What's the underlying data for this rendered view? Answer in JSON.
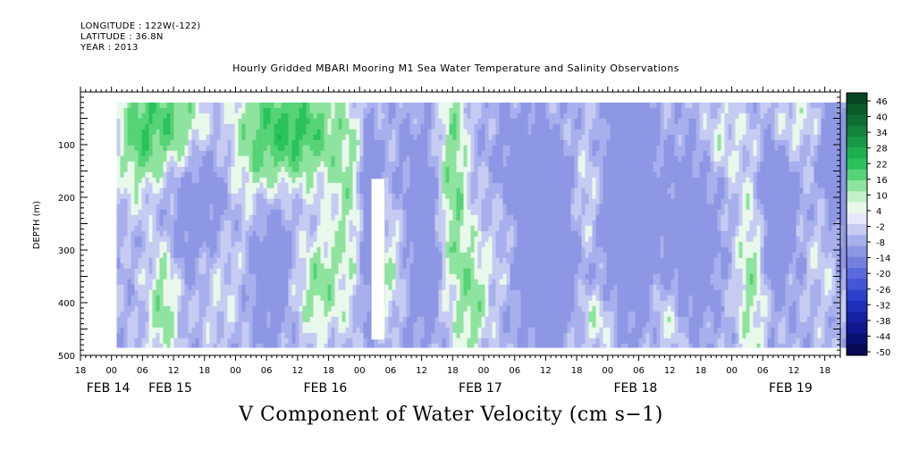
{
  "header": {
    "longitude": "LONGITUDE : 122W(-122)",
    "latitude": "LATITUDE : 36.8N",
    "year": "YEAR : 2013"
  },
  "chart_data": {
    "type": "heatmap",
    "title": "Hourly Gridded MBARI Mooring M1 Sea Water Temperature and Salinity Observations",
    "variable_title": "V Component of Water Velocity (cm s−1)",
    "ylabel": "DEPTH (m)",
    "xlabel": "",
    "ylim": [
      500,
      0
    ],
    "yticks": [
      100,
      200,
      300,
      400,
      500
    ],
    "x_start_hours": -6,
    "x_end_hours": 141,
    "x_tick_labels": [
      "18",
      "00",
      "06",
      "12",
      "18",
      "00",
      "06",
      "12",
      "18",
      "00",
      "06",
      "12",
      "18",
      "00",
      "06",
      "12",
      "18",
      "00",
      "06",
      "12",
      "18",
      "00",
      "06",
      "12",
      "18",
      "00"
    ],
    "x_tick_hours": [
      -6,
      0,
      6,
      12,
      18,
      24,
      30,
      36,
      42,
      48,
      54,
      60,
      66,
      72,
      78,
      84,
      90,
      96,
      102,
      108,
      114,
      120,
      126,
      132,
      138,
      144
    ],
    "date_labels": [
      {
        "text": "FEB 14",
        "hour": 0
      },
      {
        "text": "FEB 15",
        "hour": 12
      },
      {
        "text": "FEB 16",
        "hour": 42
      },
      {
        "text": "FEB 17",
        "hour": 72
      },
      {
        "text": "FEB 18",
        "hour": 102
      },
      {
        "text": "FEB 19",
        "hour": 132
      }
    ],
    "data_extent": {
      "hour_start": 1,
      "hour_end": 143,
      "depth_top": 20,
      "depth_bottom": 485
    },
    "gap": {
      "hour_start": 50.3,
      "hour_end": 52.8,
      "depth_top": 165,
      "depth_bottom": 470
    },
    "colorbar": {
      "labels": [
        "46",
        "40",
        "34",
        "28",
        "22",
        "16",
        "10",
        "4",
        "-2",
        "-8",
        "-14",
        "-20",
        "-26",
        "-32",
        "-38",
        "-44",
        "-50"
      ],
      "colors": [
        "#064620",
        "#0a5a2a",
        "#0e6e33",
        "#12823c",
        "#179946",
        "#1db050",
        "#2bc25c",
        "#55d376",
        "#8ee39e",
        "#c2f0c8",
        "#e8f8ea",
        "#e6e8fa",
        "#c6cbf2",
        "#a7b0ec",
        "#8d97e4",
        "#7480e0",
        "#5a6adc",
        "#4455d6",
        "#2d40cc",
        "#1e30bb",
        "#1522a3",
        "#0e188a",
        "#0a1070",
        "#060a55"
      ]
    },
    "field_levels": [
      {
        "v": -12,
        "color": "#a7b0ec"
      },
      {
        "v": -6,
        "color": "#c6cbf2"
      },
      {
        "v": 0,
        "color": "#e8f8ea"
      },
      {
        "v": 6,
        "color": "#8ee39e"
      },
      {
        "v": 14,
        "color": "#55d376"
      },
      {
        "v": 22,
        "color": "#2bc25c"
      },
      {
        "v": 30,
        "color": "#1db050"
      }
    ],
    "green_features": [
      {
        "h": 5,
        "d": 80,
        "sh": 4,
        "sd": 120,
        "a": 22
      },
      {
        "h": 12,
        "d": 60,
        "sh": 6,
        "sd": 90,
        "a": 26
      },
      {
        "h": 10,
        "d": 400,
        "sh": 3,
        "sd": 120,
        "a": 20
      },
      {
        "h": 20,
        "d": 330,
        "sh": 5,
        "sd": 130,
        "a": 18
      },
      {
        "h": 28,
        "d": 120,
        "sh": 6,
        "sd": 140,
        "a": 16
      },
      {
        "h": 36,
        "d": 70,
        "sh": 8,
        "sd": 100,
        "a": 30
      },
      {
        "h": 40,
        "d": 370,
        "sh": 5,
        "sd": 100,
        "a": 18
      },
      {
        "h": 46,
        "d": 200,
        "sh": 4,
        "sd": 180,
        "a": 14
      },
      {
        "h": 54,
        "d": 330,
        "sh": 4,
        "sd": 120,
        "a": 16
      },
      {
        "h": 66,
        "d": 180,
        "sh": 3,
        "sd": 250,
        "a": 24
      },
      {
        "h": 70,
        "d": 400,
        "sh": 3,
        "sd": 120,
        "a": 18
      },
      {
        "h": 76,
        "d": 250,
        "sh": 4,
        "sd": 140,
        "a": 10
      },
      {
        "h": 92,
        "d": 200,
        "sh": 3,
        "sd": 120,
        "a": 12
      },
      {
        "h": 94,
        "d": 430,
        "sh": 4,
        "sd": 60,
        "a": 14
      },
      {
        "h": 108,
        "d": 420,
        "sh": 3,
        "sd": 80,
        "a": 12
      },
      {
        "h": 118,
        "d": 90,
        "sh": 4,
        "sd": 80,
        "a": 10
      },
      {
        "h": 124,
        "d": 330,
        "sh": 3,
        "sd": 200,
        "a": 20
      },
      {
        "h": 132,
        "d": 60,
        "sh": 5,
        "sd": 60,
        "a": 12
      },
      {
        "h": 138,
        "d": 300,
        "sh": 3,
        "sd": 120,
        "a": 10
      }
    ],
    "blue_features": [
      {
        "h": 18,
        "d": 250,
        "sh": 6,
        "sd": 150,
        "a": -22
      },
      {
        "h": 31,
        "d": 320,
        "sh": 4,
        "sd": 150,
        "a": -18
      },
      {
        "h": 50,
        "d": 250,
        "sh": 2,
        "sd": 180,
        "a": -26
      },
      {
        "h": 60,
        "d": 280,
        "sh": 5,
        "sd": 200,
        "a": -16
      },
      {
        "h": 78,
        "d": 150,
        "sh": 5,
        "sd": 120,
        "a": -14
      },
      {
        "h": 84,
        "d": 300,
        "sh": 6,
        "sd": 180,
        "a": -22
      },
      {
        "h": 100,
        "d": 220,
        "sh": 5,
        "sd": 220,
        "a": -24
      },
      {
        "h": 112,
        "d": 280,
        "sh": 5,
        "sd": 150,
        "a": -20
      },
      {
        "h": 128,
        "d": 230,
        "sh": 4,
        "sd": 160,
        "a": -18
      },
      {
        "h": 140,
        "d": 150,
        "sh": 3,
        "sd": 150,
        "a": -20
      }
    ]
  }
}
